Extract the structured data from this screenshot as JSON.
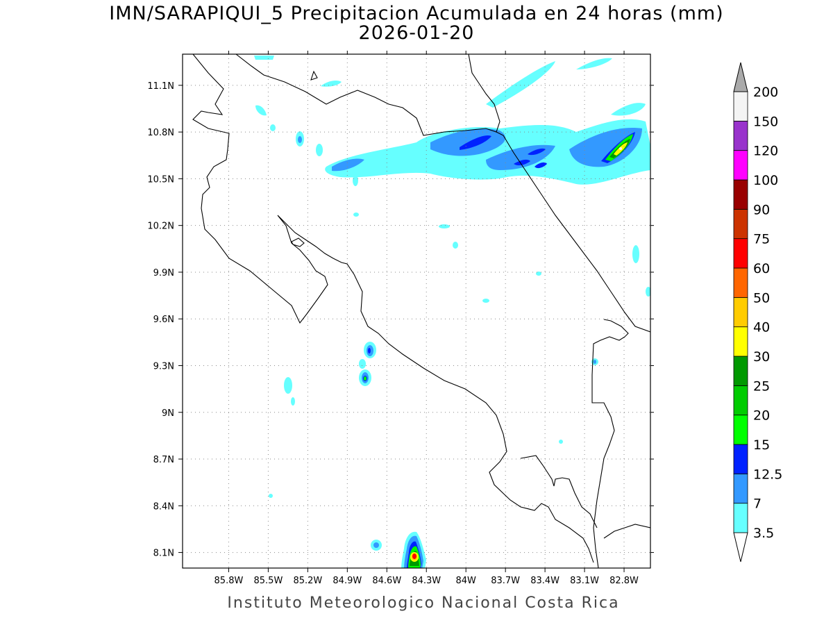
{
  "title": {
    "line1": "IMN/SARAPIQUI_5 Precipitacion Acumulada en 24 horas (mm)",
    "line2": "2026-01-20"
  },
  "footer": "Instituto Meteorologico Nacional Costa Rica",
  "map": {
    "lon_range": [
      -86.15,
      -82.6
    ],
    "lat_range": [
      8.0,
      11.3
    ],
    "lon_ticks": [
      {
        "value": -85.8,
        "label": "85.8W"
      },
      {
        "value": -85.5,
        "label": "85.5W"
      },
      {
        "value": -85.2,
        "label": "85.2W"
      },
      {
        "value": -84.9,
        "label": "84.9W"
      },
      {
        "value": -84.6,
        "label": "84.6W"
      },
      {
        "value": -84.3,
        "label": "84.3W"
      },
      {
        "value": -84.0,
        "label": "84W"
      },
      {
        "value": -83.7,
        "label": "83.7W"
      },
      {
        "value": -83.4,
        "label": "83.4W"
      },
      {
        "value": -83.1,
        "label": "83.1W"
      },
      {
        "value": -82.8,
        "label": "82.8W"
      }
    ],
    "lat_ticks": [
      {
        "value": 11.1,
        "label": "11.1N"
      },
      {
        "value": 10.8,
        "label": "10.8N"
      },
      {
        "value": 10.5,
        "label": "10.5N"
      },
      {
        "value": 10.2,
        "label": "10.2N"
      },
      {
        "value": 9.9,
        "label": "9.9N"
      },
      {
        "value": 9.6,
        "label": "9.6N"
      },
      {
        "value": 9.3,
        "label": "9.3N"
      },
      {
        "value": 9.0,
        "label": "9N"
      },
      {
        "value": 8.7,
        "label": "8.7N"
      },
      {
        "value": 8.4,
        "label": "8.4N"
      },
      {
        "value": 8.1,
        "label": "8.1N"
      }
    ],
    "grid": "dotted"
  },
  "legend": {
    "levels": [
      {
        "label": "3.5",
        "color": "#66ffff"
      },
      {
        "label": "7",
        "color": "#3399ff"
      },
      {
        "label": "12.5",
        "color": "#0022ff"
      },
      {
        "label": "15",
        "color": "#00ff00"
      },
      {
        "label": "20",
        "color": "#00cc00"
      },
      {
        "label": "25",
        "color": "#009900"
      },
      {
        "label": "30",
        "color": "#ffff00"
      },
      {
        "label": "40",
        "color": "#ffcc00"
      },
      {
        "label": "50",
        "color": "#ff6600"
      },
      {
        "label": "60",
        "color": "#ff0000"
      },
      {
        "label": "75",
        "color": "#cc3300"
      },
      {
        "label": "90",
        "color": "#990000"
      },
      {
        "label": "100",
        "color": "#ff00ff"
      },
      {
        "label": "120",
        "color": "#9933cc"
      },
      {
        "label": "150",
        "color": "#f4f4f4"
      },
      {
        "label": "200",
        "color": "#aaaaaa"
      }
    ],
    "under_color": "#ffffff",
    "over_color": "#aaaaaa"
  }
}
